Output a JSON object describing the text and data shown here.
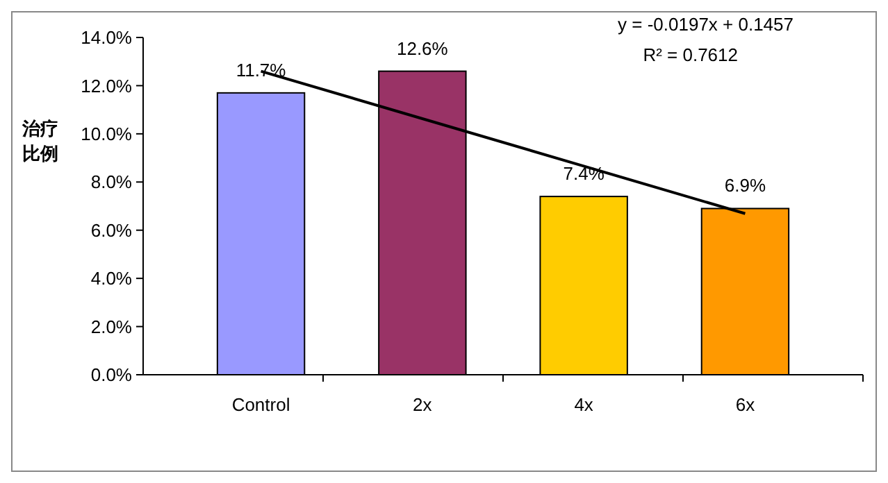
{
  "chart_data": {
    "type": "bar",
    "ylabel": "治疗比例",
    "categories": [
      "Control",
      "2x",
      "4x",
      "6x"
    ],
    "series": [
      {
        "colors": [
          "#9999ff",
          "#993366",
          "#ffcc00",
          "#ff9900"
        ],
        "values": [
          11.7,
          12.6,
          7.4,
          6.9
        ],
        "value_labels": [
          "11.7%",
          "12.6%",
          "7.4%",
          "6.9%"
        ]
      },
      {
        "type": "line",
        "color": "#000000",
        "values": [
          12.6,
          10.63,
          8.66,
          6.69
        ]
      }
    ],
    "ylim": [
      0,
      14
    ],
    "yticks": [
      {
        "value": 0,
        "label": "0.0%"
      },
      {
        "value": 2,
        "label": "2.0%"
      },
      {
        "value": 4,
        "label": "4.0%"
      },
      {
        "value": 6,
        "label": "6.0%"
      },
      {
        "value": 8,
        "label": "8.0%"
      },
      {
        "value": 10,
        "label": "10.0%"
      },
      {
        "value": 12,
        "label": "12.0%"
      },
      {
        "value": 14,
        "label": "14.0%"
      }
    ],
    "annotations": [
      "y = -0.0197x + 0.1457",
      "R² = 0.7612"
    ],
    "grid": false
  }
}
